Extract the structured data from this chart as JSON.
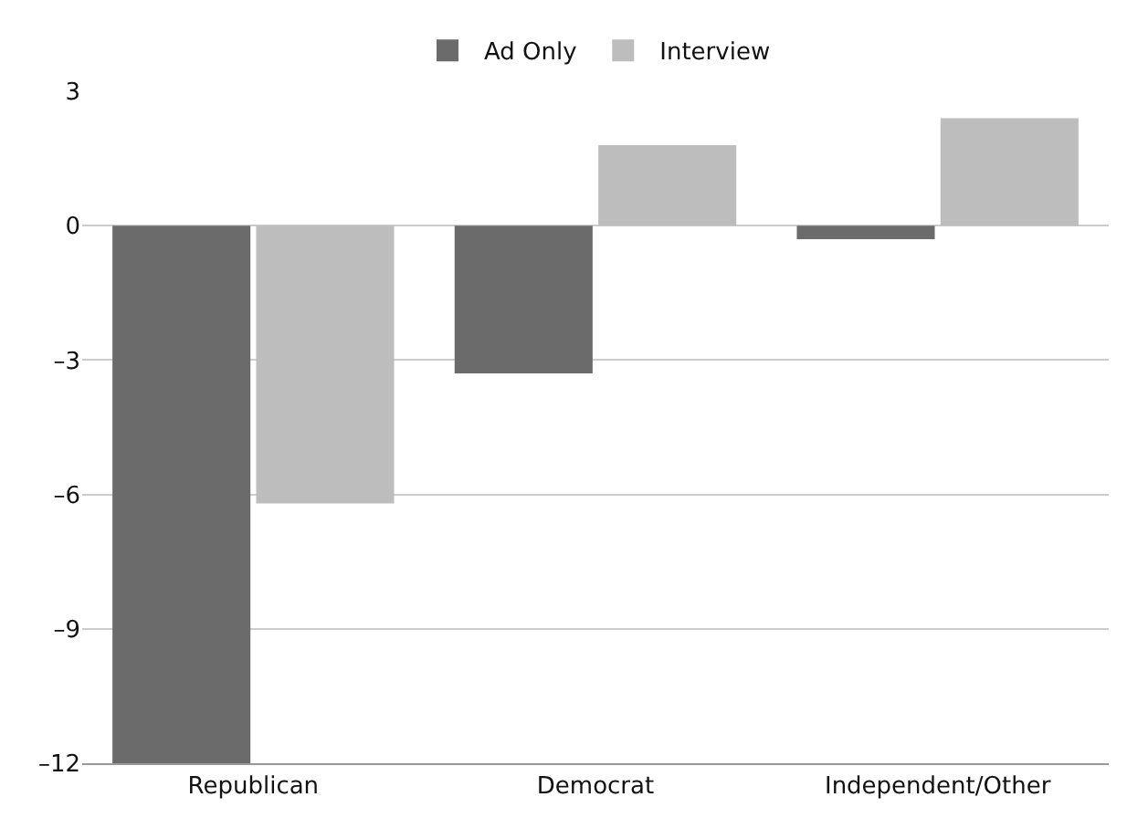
{
  "chart_data": {
    "type": "bar",
    "categories": [
      "Republican",
      "Democrat",
      "Independent/Other"
    ],
    "series": [
      {
        "name": "Ad Only",
        "color": "#6b6b6b",
        "values": [
          -12,
          -3.3,
          -0.3
        ]
      },
      {
        "name": "Interview",
        "color": "#bdbdbd",
        "values": [
          -6.2,
          1.8,
          2.4
        ]
      }
    ],
    "ylim": [
      -12,
      3
    ],
    "yticks": [
      {
        "value": -12,
        "label": "–12"
      },
      {
        "value": -9,
        "label": "–9"
      },
      {
        "value": -6,
        "label": "–6"
      },
      {
        "value": -3,
        "label": "–3"
      },
      0,
      3
    ],
    "grid": "y",
    "legend": "top"
  }
}
